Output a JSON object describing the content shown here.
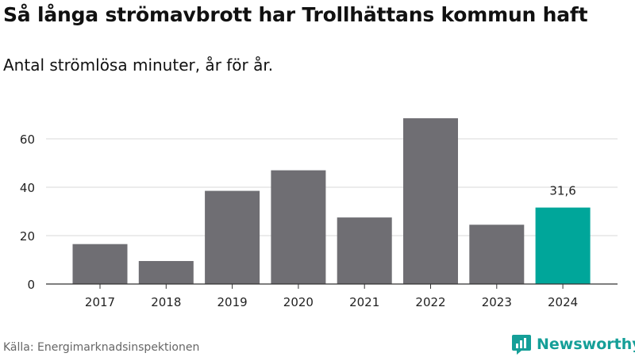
{
  "title": "Så långa strömavbrott har Trollhättans kommun haft",
  "subtitle": "Antal strömlösa minuter, år för år.",
  "source": "Källa: Energimarknadsinspektionen",
  "brand": {
    "name": "Newsworthy",
    "icon": "newsworthy-logo-icon",
    "color": "#159f98"
  },
  "colors": {
    "bar": "#6f6e73",
    "highlight": "#00a69a",
    "grid": "#d9d9d9",
    "axis": "#333333"
  },
  "chart_data": {
    "type": "bar",
    "title": "Så långa strömavbrott har Trollhättans kommun haft",
    "subtitle": "Antal strömlösa minuter, år för år.",
    "xlabel": "",
    "ylabel": "",
    "categories": [
      "2017",
      "2018",
      "2019",
      "2020",
      "2021",
      "2022",
      "2023",
      "2024"
    ],
    "values": [
      16.5,
      9.5,
      38.5,
      47,
      27.5,
      68.5,
      24.5,
      31.6
    ],
    "ylim": [
      0,
      72
    ],
    "yticks": [
      0,
      20,
      40,
      60
    ],
    "highlight_index": 7,
    "data_labels": [
      {
        "index": 7,
        "text": "31,6"
      }
    ],
    "grid": true
  }
}
